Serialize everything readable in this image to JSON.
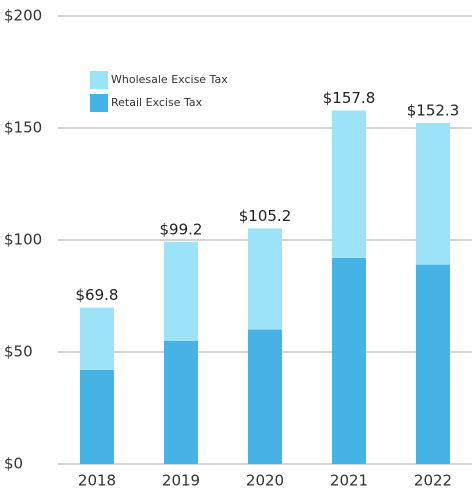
{
  "chart_data": {
    "type": "stacked_bar",
    "categories": [
      "2018",
      "2019",
      "2020",
      "2021",
      "2022"
    ],
    "series": [
      {
        "name": "Retail Excise Tax",
        "color": "#45b3e6",
        "values": [
          42,
          55,
          60,
          92,
          89
        ]
      },
      {
        "name": "Wholesale Excise Tax",
        "color": "#9de3f7",
        "values": [
          27.8,
          44.2,
          45.2,
          65.8,
          63.3
        ]
      }
    ],
    "totals": [
      69.8,
      99.2,
      105.2,
      157.8,
      152.3
    ],
    "total_labels": [
      "$69.8",
      "$99.2",
      "$105.2",
      "$157.8",
      "$152.3"
    ],
    "ylim": [
      0,
      200
    ],
    "yticks": [
      {
        "value": 0,
        "label": "$0"
      },
      {
        "value": 50,
        "label": "$50"
      },
      {
        "value": 100,
        "label": "$100"
      },
      {
        "value": 150,
        "label": "$150"
      },
      {
        "value": 200,
        "label": "$200"
      }
    ],
    "grid": true,
    "legend": "upper left"
  }
}
